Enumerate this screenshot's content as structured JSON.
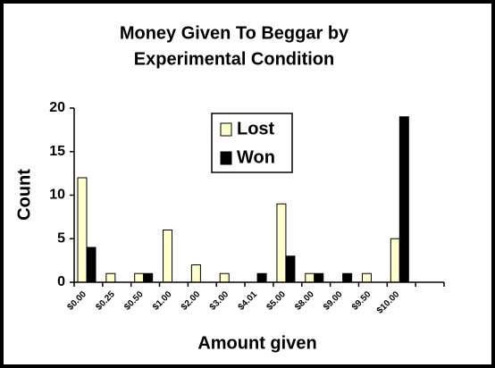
{
  "chart_data": {
    "type": "bar",
    "title": [
      "Money Given To Beggar by",
      "Experimental Condition"
    ],
    "x_label": "Amount given",
    "y_label": "Count",
    "categories": [
      "$0.00",
      "$0.25",
      "$0.50",
      "$1.00",
      "$2.00",
      "$3.00",
      "$4.01",
      "$5.00",
      "$8.00",
      "$9.00",
      "$9.50",
      "$10.00"
    ],
    "series": [
      {
        "name": "Lost",
        "color": "#ffffcc",
        "values": [
          12,
          1,
          1,
          6,
          2,
          1,
          0,
          9,
          1,
          0,
          1,
          5
        ]
      },
      {
        "name": "Won",
        "color": "#000000",
        "values": [
          4,
          0,
          1,
          0,
          0,
          0,
          1,
          3,
          1,
          1,
          0,
          19
        ]
      }
    ],
    "ylim": [
      0,
      20
    ],
    "yticks": [
      0,
      5,
      10,
      15,
      20
    ],
    "legend": "top-center"
  }
}
